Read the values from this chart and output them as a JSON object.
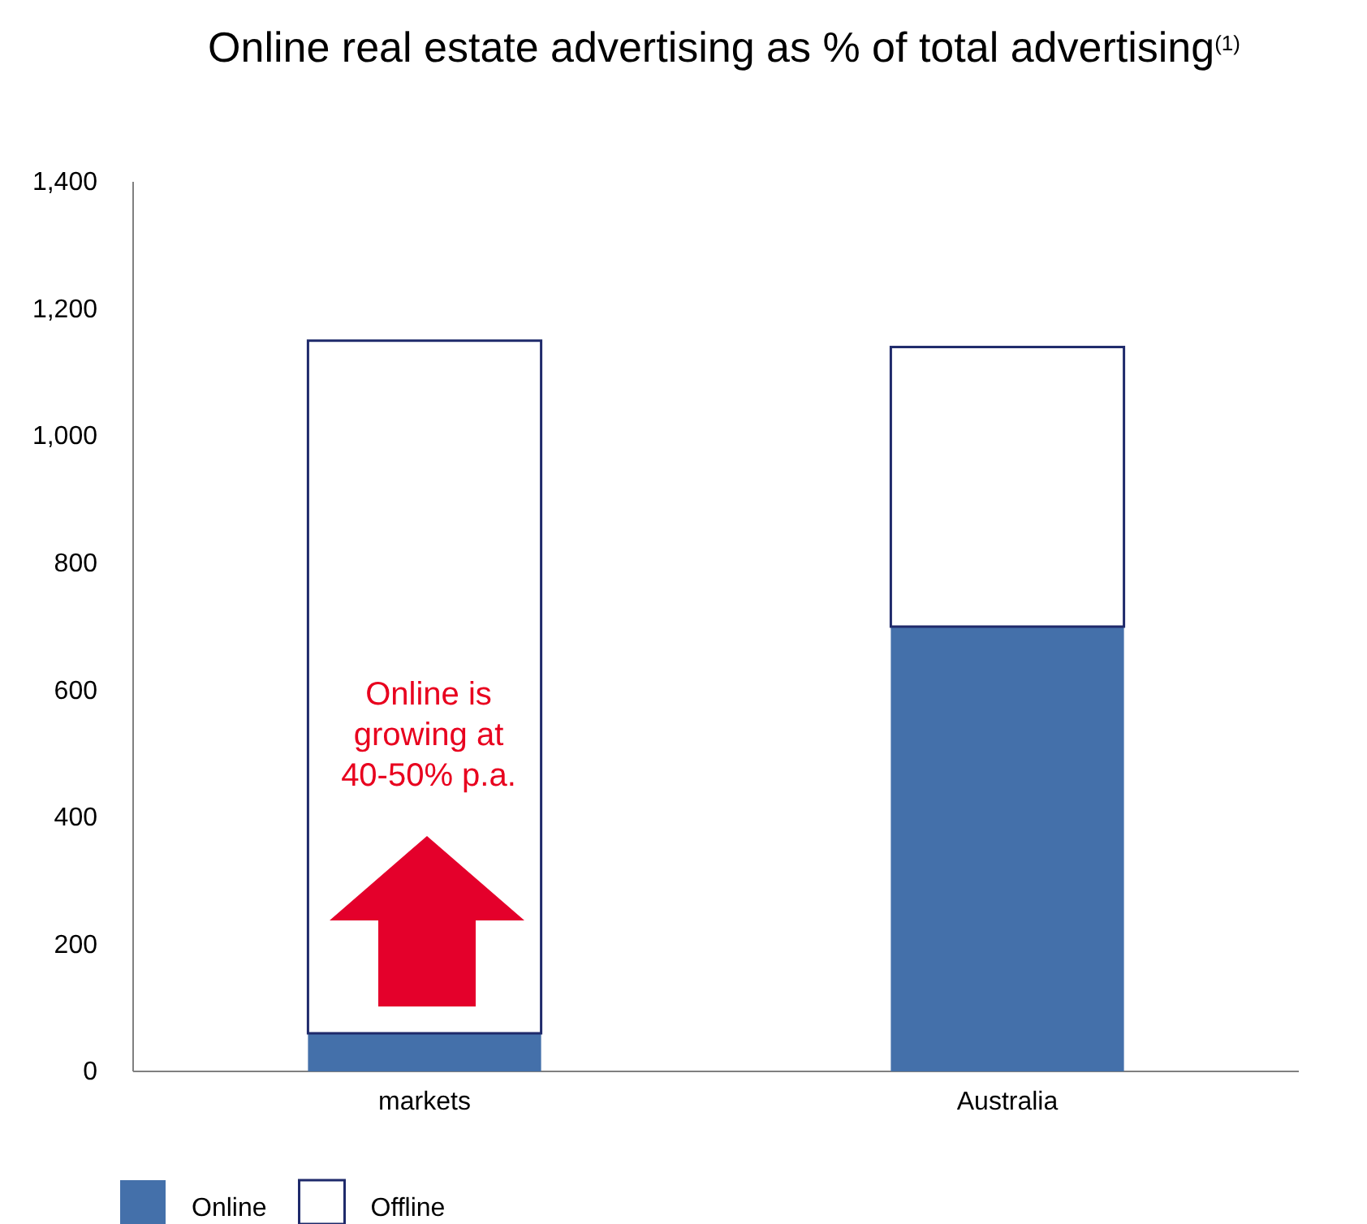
{
  "chart_data": {
    "type": "bar",
    "title": "Online real estate advertising as % of total advertising$^{(1)}$",
    "categories": [
      "markets",
      "Australia"
    ],
    "stacked": true,
    "series": [
      {
        "name": "Online",
        "color": "#4470aa",
        "values": [
          60,
          700
        ]
      },
      {
        "name": "Offline",
        "color": "#ffffff",
        "values": [
          1090,
          440
        ]
      }
    ],
    "ylim": [
      0,
      1400
    ],
    "yticks": [
      0,
      {
        "value": 200,
        "label": "200"
      },
      {
        "value": 400,
        "label": "400"
      },
      {
        "value": 600,
        "label": "600"
      },
      {
        "value": 800,
        "label": "800"
      },
      {
        "value": 1000,
        "label": "1,000"
      },
      {
        "value": 1200,
        "label": "1,200"
      },
      {
        "value": 1400,
        "label": "1,400"
      }
    ],
    "legend": "bottom left",
    "annotations": [
      "Online is growing at 40-50% p.a."
    ]
  }
}
